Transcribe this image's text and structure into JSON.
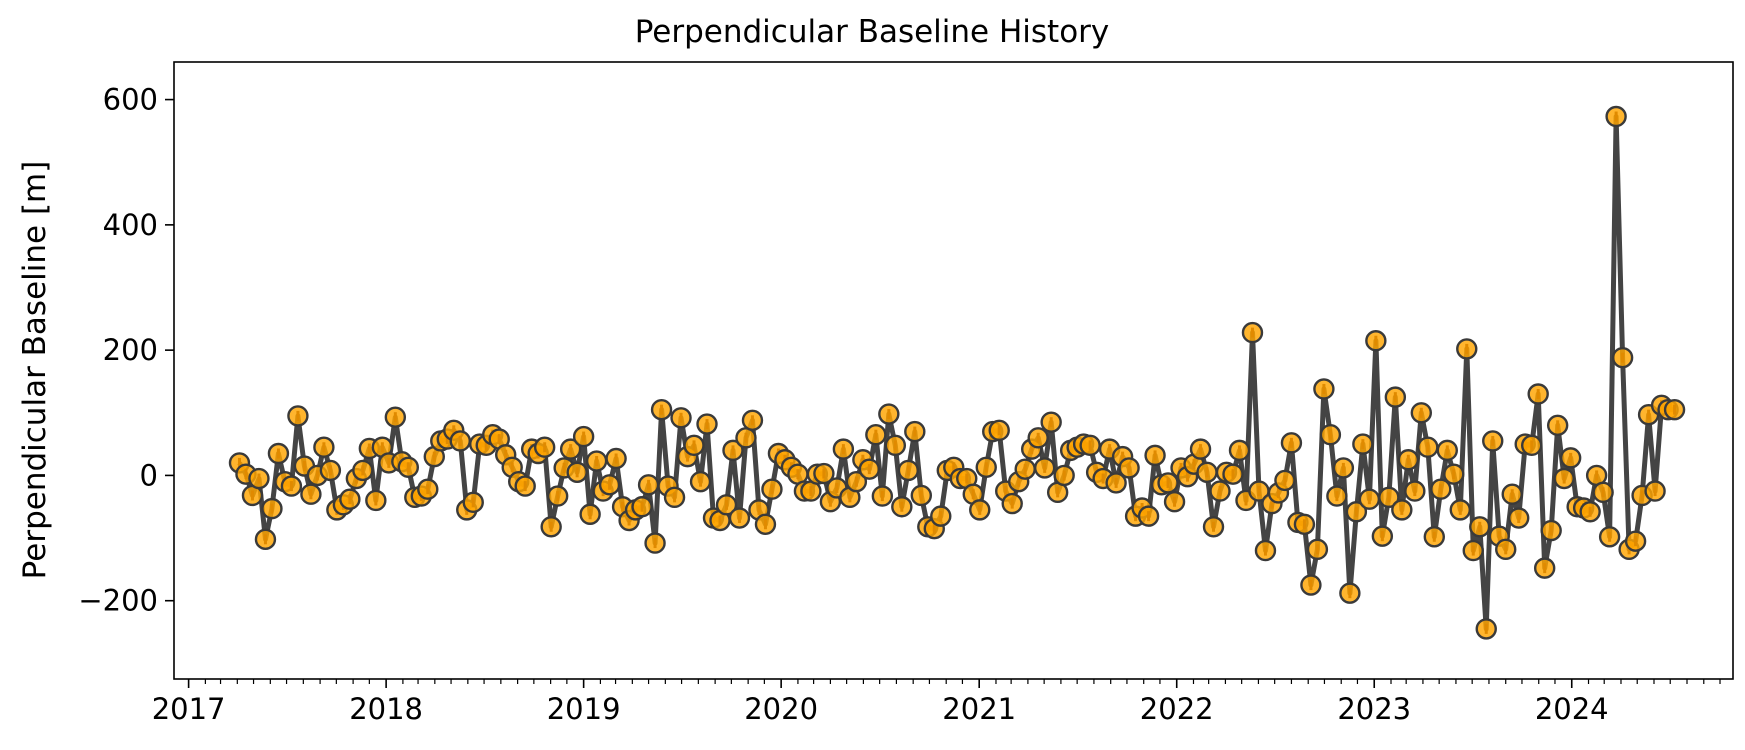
{
  "chart_data": {
    "type": "scatter",
    "title": "Perpendicular Baseline History",
    "xlabel": "",
    "ylabel": "Perpendicular Baseline [m]",
    "x_axis": {
      "type": "date",
      "range": [
        "2016-12-05",
        "2024-10-25"
      ],
      "tick_labels": [
        "2017",
        "2018",
        "2019",
        "2020",
        "2021",
        "2022",
        "2023",
        "2024"
      ]
    },
    "y_axis": {
      "range": [
        -325,
        660
      ],
      "tick_values": [
        -200,
        0,
        200,
        400,
        600
      ],
      "tick_labels": [
        "−200",
        "0",
        "200",
        "400",
        "600"
      ]
    },
    "grid": false,
    "legend": "none",
    "colors": {
      "marker_fill": "#ffa500",
      "marker_edge": "#3a3a3a",
      "line": "#444444",
      "stem": "#e08a00"
    },
    "series": [
      {
        "points": [
          [
            "2017-04-05",
            20
          ],
          [
            "2017-04-17",
            2
          ],
          [
            "2017-04-29",
            -32
          ],
          [
            "2017-05-11",
            -5
          ],
          [
            "2017-05-23",
            -102
          ],
          [
            "2017-06-04",
            -53
          ],
          [
            "2017-06-16",
            35
          ],
          [
            "2017-06-28",
            -10
          ],
          [
            "2017-07-10",
            -17
          ],
          [
            "2017-07-22",
            95
          ],
          [
            "2017-08-03",
            15
          ],
          [
            "2017-08-15",
            -30
          ],
          [
            "2017-08-27",
            0
          ],
          [
            "2017-09-08",
            45
          ],
          [
            "2017-09-20",
            8
          ],
          [
            "2017-10-02",
            -55
          ],
          [
            "2017-10-14",
            -47
          ],
          [
            "2017-10-26",
            -38
          ],
          [
            "2017-11-07",
            -5
          ],
          [
            "2017-11-19",
            8
          ],
          [
            "2017-12-01",
            43
          ],
          [
            "2017-12-13",
            -40
          ],
          [
            "2017-12-25",
            45
          ],
          [
            "2018-01-06",
            20
          ],
          [
            "2018-01-18",
            93
          ],
          [
            "2018-01-30",
            22
          ],
          [
            "2018-02-11",
            13
          ],
          [
            "2018-02-23",
            -35
          ],
          [
            "2018-03-07",
            -33
          ],
          [
            "2018-03-19",
            -22
          ],
          [
            "2018-03-31",
            30
          ],
          [
            "2018-04-12",
            55
          ],
          [
            "2018-04-24",
            58
          ],
          [
            "2018-05-06",
            72
          ],
          [
            "2018-05-18",
            55
          ],
          [
            "2018-05-30",
            -55
          ],
          [
            "2018-06-11",
            -43
          ],
          [
            "2018-06-23",
            50
          ],
          [
            "2018-07-05",
            48
          ],
          [
            "2018-07-17",
            65
          ],
          [
            "2018-07-29",
            58
          ],
          [
            "2018-08-10",
            33
          ],
          [
            "2018-08-22",
            13
          ],
          [
            "2018-09-03",
            -10
          ],
          [
            "2018-09-15",
            -17
          ],
          [
            "2018-09-27",
            42
          ],
          [
            "2018-10-09",
            35
          ],
          [
            "2018-10-21",
            45
          ],
          [
            "2018-11-02",
            -82
          ],
          [
            "2018-11-14",
            -33
          ],
          [
            "2018-11-26",
            12
          ],
          [
            "2018-12-08",
            42
          ],
          [
            "2018-12-20",
            5
          ],
          [
            "2019-01-01",
            62
          ],
          [
            "2019-01-13",
            -62
          ],
          [
            "2019-01-25",
            23
          ],
          [
            "2019-02-06",
            -25
          ],
          [
            "2019-02-18",
            -15
          ],
          [
            "2019-03-02",
            27
          ],
          [
            "2019-03-14",
            -50
          ],
          [
            "2019-03-26",
            -72
          ],
          [
            "2019-04-07",
            -55
          ],
          [
            "2019-04-19",
            -50
          ],
          [
            "2019-05-01",
            -15
          ],
          [
            "2019-05-13",
            -108
          ],
          [
            "2019-05-25",
            105
          ],
          [
            "2019-06-06",
            -17
          ],
          [
            "2019-06-18",
            -35
          ],
          [
            "2019-06-30",
            92
          ],
          [
            "2019-07-12",
            30
          ],
          [
            "2019-07-24",
            48
          ],
          [
            "2019-08-05",
            -10
          ],
          [
            "2019-08-17",
            82
          ],
          [
            "2019-08-29",
            -68
          ],
          [
            "2019-09-10",
            -72
          ],
          [
            "2019-09-22",
            -47
          ],
          [
            "2019-10-04",
            40
          ],
          [
            "2019-10-16",
            -68
          ],
          [
            "2019-10-28",
            60
          ],
          [
            "2019-11-09",
            88
          ],
          [
            "2019-11-21",
            -55
          ],
          [
            "2019-12-03",
            -78
          ],
          [
            "2019-12-15",
            -22
          ],
          [
            "2019-12-27",
            35
          ],
          [
            "2020-01-08",
            25
          ],
          [
            "2020-01-20",
            13
          ],
          [
            "2020-02-01",
            2
          ],
          [
            "2020-02-13",
            -25
          ],
          [
            "2020-02-25",
            -25
          ],
          [
            "2020-03-08",
            2
          ],
          [
            "2020-03-20",
            3
          ],
          [
            "2020-04-01",
            -42
          ],
          [
            "2020-04-13",
            -20
          ],
          [
            "2020-04-25",
            42
          ],
          [
            "2020-05-07",
            -35
          ],
          [
            "2020-05-19",
            -10
          ],
          [
            "2020-05-31",
            25
          ],
          [
            "2020-06-12",
            10
          ],
          [
            "2020-06-24",
            65
          ],
          [
            "2020-07-06",
            -33
          ],
          [
            "2020-07-18",
            98
          ],
          [
            "2020-07-30",
            48
          ],
          [
            "2020-08-11",
            -50
          ],
          [
            "2020-08-23",
            8
          ],
          [
            "2020-09-04",
            70
          ],
          [
            "2020-09-16",
            -32
          ],
          [
            "2020-09-28",
            -82
          ],
          [
            "2020-10-10",
            -85
          ],
          [
            "2020-10-22",
            -65
          ],
          [
            "2020-11-03",
            8
          ],
          [
            "2020-11-15",
            13
          ],
          [
            "2020-11-27",
            -5
          ],
          [
            "2020-12-09",
            -5
          ],
          [
            "2020-12-21",
            -30
          ],
          [
            "2021-01-02",
            -55
          ],
          [
            "2021-01-14",
            13
          ],
          [
            "2021-01-26",
            70
          ],
          [
            "2021-02-07",
            72
          ],
          [
            "2021-02-19",
            -25
          ],
          [
            "2021-03-03",
            -45
          ],
          [
            "2021-03-15",
            -10
          ],
          [
            "2021-03-27",
            10
          ],
          [
            "2021-04-08",
            42
          ],
          [
            "2021-04-20",
            60
          ],
          [
            "2021-05-02",
            12
          ],
          [
            "2021-05-14",
            85
          ],
          [
            "2021-05-26",
            -27
          ],
          [
            "2021-06-07",
            0
          ],
          [
            "2021-06-19",
            40
          ],
          [
            "2021-07-01",
            45
          ],
          [
            "2021-07-13",
            50
          ],
          [
            "2021-07-25",
            48
          ],
          [
            "2021-08-06",
            5
          ],
          [
            "2021-08-18",
            -5
          ],
          [
            "2021-08-30",
            42
          ],
          [
            "2021-09-11",
            -12
          ],
          [
            "2021-09-23",
            30
          ],
          [
            "2021-10-05",
            12
          ],
          [
            "2021-10-17",
            -65
          ],
          [
            "2021-10-29",
            -52
          ],
          [
            "2021-11-10",
            -65
          ],
          [
            "2021-11-22",
            32
          ],
          [
            "2021-12-04",
            -15
          ],
          [
            "2021-12-16",
            -12
          ],
          [
            "2021-12-28",
            -42
          ],
          [
            "2022-01-09",
            12
          ],
          [
            "2022-01-21",
            -2
          ],
          [
            "2022-02-02",
            18
          ],
          [
            "2022-02-14",
            42
          ],
          [
            "2022-02-26",
            5
          ],
          [
            "2022-03-10",
            -82
          ],
          [
            "2022-03-22",
            -25
          ],
          [
            "2022-04-03",
            5
          ],
          [
            "2022-04-15",
            2
          ],
          [
            "2022-04-27",
            40
          ],
          [
            "2022-05-09",
            -40
          ],
          [
            "2022-05-21",
            228
          ],
          [
            "2022-06-02",
            -25
          ],
          [
            "2022-06-14",
            -120
          ],
          [
            "2022-06-26",
            -45
          ],
          [
            "2022-07-08",
            -28
          ],
          [
            "2022-07-20",
            -8
          ],
          [
            "2022-08-01",
            52
          ],
          [
            "2022-08-13",
            -75
          ],
          [
            "2022-08-25",
            -78
          ],
          [
            "2022-09-06",
            -175
          ],
          [
            "2022-09-18",
            -118
          ],
          [
            "2022-09-30",
            138
          ],
          [
            "2022-10-12",
            65
          ],
          [
            "2022-10-24",
            -33
          ],
          [
            "2022-11-05",
            12
          ],
          [
            "2022-11-17",
            -188
          ],
          [
            "2022-11-29",
            -58
          ],
          [
            "2022-12-11",
            50
          ],
          [
            "2022-12-23",
            -38
          ],
          [
            "2023-01-04",
            215
          ],
          [
            "2023-01-16",
            -97
          ],
          [
            "2023-01-28",
            -35
          ],
          [
            "2023-02-09",
            125
          ],
          [
            "2023-02-21",
            -55
          ],
          [
            "2023-03-05",
            25
          ],
          [
            "2023-03-17",
            -25
          ],
          [
            "2023-03-29",
            100
          ],
          [
            "2023-04-10",
            45
          ],
          [
            "2023-04-22",
            -98
          ],
          [
            "2023-05-04",
            -22
          ],
          [
            "2023-05-16",
            40
          ],
          [
            "2023-05-28",
            2
          ],
          [
            "2023-06-09",
            -55
          ],
          [
            "2023-06-21",
            202
          ],
          [
            "2023-07-03",
            -120
          ],
          [
            "2023-07-15",
            -82
          ],
          [
            "2023-07-27",
            -245
          ],
          [
            "2023-08-08",
            55
          ],
          [
            "2023-08-20",
            -97
          ],
          [
            "2023-09-01",
            -118
          ],
          [
            "2023-09-13",
            -30
          ],
          [
            "2023-09-25",
            -68
          ],
          [
            "2023-10-07",
            50
          ],
          [
            "2023-10-19",
            48
          ],
          [
            "2023-10-31",
            130
          ],
          [
            "2023-11-12",
            -148
          ],
          [
            "2023-11-24",
            -88
          ],
          [
            "2023-12-06",
            80
          ],
          [
            "2023-12-18",
            -5
          ],
          [
            "2023-12-30",
            28
          ],
          [
            "2024-01-11",
            -50
          ],
          [
            "2024-01-23",
            -52
          ],
          [
            "2024-02-04",
            -58
          ],
          [
            "2024-02-16",
            0
          ],
          [
            "2024-02-28",
            -27
          ],
          [
            "2024-03-11",
            -98
          ],
          [
            "2024-03-23",
            573
          ],
          [
            "2024-04-04",
            188
          ],
          [
            "2024-04-16",
            -118
          ],
          [
            "2024-04-28",
            -105
          ],
          [
            "2024-05-10",
            -32
          ],
          [
            "2024-05-22",
            97
          ],
          [
            "2024-06-03",
            -25
          ],
          [
            "2024-06-15",
            112
          ],
          [
            "2024-06-27",
            105
          ],
          [
            "2024-07-09",
            105
          ]
        ]
      }
    ]
  }
}
